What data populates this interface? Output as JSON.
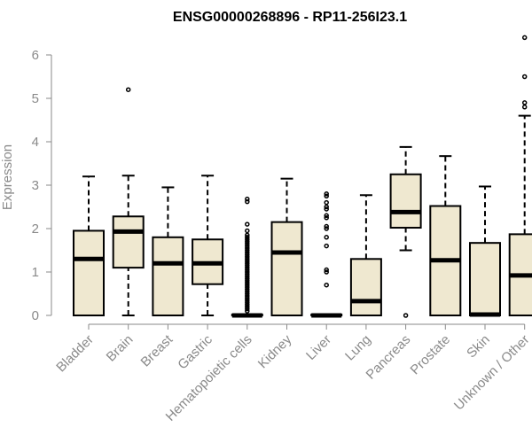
{
  "chart_data": {
    "type": "boxplot",
    "title": "ENSG00000268896 - RP11-256I23.1",
    "ylabel": "Expression",
    "ylim": [
      0,
      6.5
    ],
    "yticks": [
      0,
      1,
      2,
      3,
      4,
      5,
      6
    ],
    "categories": [
      "Bladder",
      "Brain",
      "Breast",
      "Gastric",
      "Hematopoietic cells",
      "Kidney",
      "Liver",
      "Lung",
      "Pancreas",
      "Prostate",
      "Skin",
      "Unknown / Other"
    ],
    "boxes": [
      {
        "name": "Bladder",
        "min": 0,
        "q1": 0,
        "median": 1.3,
        "q3": 1.95,
        "max": 3.2,
        "outliers": []
      },
      {
        "name": "Brain",
        "min": 0,
        "q1": 1.1,
        "median": 1.93,
        "q3": 2.28,
        "max": 3.22,
        "outliers": [
          5.2
        ]
      },
      {
        "name": "Breast",
        "min": 0,
        "q1": 0,
        "median": 1.2,
        "q3": 1.8,
        "max": 2.95,
        "outliers": []
      },
      {
        "name": "Gastric",
        "min": 0,
        "q1": 0.72,
        "median": 1.2,
        "q3": 1.75,
        "max": 3.22,
        "outliers": []
      },
      {
        "name": "Hematopoietic cells",
        "min": 0,
        "q1": 0,
        "median": 0,
        "q3": 0.02,
        "max": 0.02,
        "outliers": [
          2.68,
          2.62,
          2.1,
          1.95,
          1.85,
          1.8,
          1.75,
          1.7,
          1.65,
          1.6,
          1.55,
          1.5,
          1.45,
          1.4,
          1.35,
          1.3,
          1.25,
          1.2,
          1.15,
          1.1,
          1.05,
          1.0,
          0.95,
          0.9,
          0.85,
          0.8,
          0.75,
          0.7,
          0.65,
          0.6,
          0.55,
          0.5,
          0.45,
          0.4,
          0.35,
          0.3,
          0.25,
          0.2,
          0.15,
          0.1
        ]
      },
      {
        "name": "Kidney",
        "min": 0,
        "q1": 0,
        "median": 1.45,
        "q3": 2.15,
        "max": 3.15,
        "outliers": []
      },
      {
        "name": "Liver",
        "min": 0,
        "q1": 0,
        "median": 0,
        "q3": 0.02,
        "max": 0.02,
        "outliers": [
          2.8,
          2.75,
          2.6,
          2.5,
          2.45,
          2.3,
          2.25,
          2.05,
          2.0,
          1.8,
          1.6,
          1.05,
          1.0,
          0.7
        ]
      },
      {
        "name": "Lung",
        "min": 0,
        "q1": 0,
        "median": 0.33,
        "q3": 1.3,
        "max": 2.77,
        "outliers": []
      },
      {
        "name": "Pancreas",
        "min": 1.5,
        "q1": 2.02,
        "median": 2.38,
        "q3": 3.25,
        "max": 3.88,
        "outliers": [
          0
        ]
      },
      {
        "name": "Prostate",
        "min": 0,
        "q1": 0,
        "median": 1.27,
        "q3": 2.52,
        "max": 3.67,
        "outliers": []
      },
      {
        "name": "Skin",
        "min": 0,
        "q1": 0,
        "median": 0.02,
        "q3": 1.67,
        "max": 2.97,
        "outliers": []
      },
      {
        "name": "Unknown / Other",
        "min": 0,
        "q1": 0,
        "median": 0.92,
        "q3": 1.87,
        "max": 4.6,
        "outliers": [
          6.4,
          5.5,
          4.9,
          4.8
        ]
      }
    ]
  }
}
